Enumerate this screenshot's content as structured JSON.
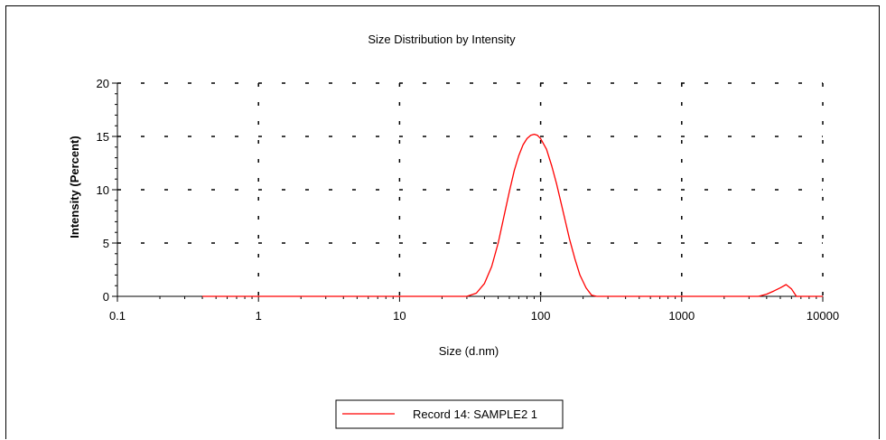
{
  "chart_data": {
    "type": "line",
    "title": "Size Distribution by Intensity",
    "xlabel": "Size (d.nm)",
    "ylabel": "Intensity (Percent)",
    "x_scale": "log",
    "xlim": [
      0.1,
      10000
    ],
    "ylim": [
      0,
      20
    ],
    "x_ticks": [
      0.1,
      1,
      10,
      100,
      1000,
      10000
    ],
    "x_tick_labels": [
      "0.1",
      "1",
      "10",
      "100",
      "1000",
      "10000"
    ],
    "y_ticks": [
      0,
      5,
      10,
      15,
      20
    ],
    "y_tick_labels": [
      "0",
      "5",
      "10",
      "15",
      "20"
    ],
    "grid": true,
    "legend_position": "bottom-center",
    "series": [
      {
        "name": "Record 14: SAMPLE2 1",
        "color": "#ff0000",
        "x": [
          0.4,
          10,
          30,
          35,
          40,
          45,
          50,
          55,
          60,
          65,
          70,
          75,
          80,
          85,
          90,
          95,
          100,
          110,
          120,
          130,
          140,
          150,
          160,
          175,
          190,
          210,
          230,
          250,
          1000,
          3500,
          4000,
          4500,
          5000,
          5500,
          6000,
          6500,
          10000
        ],
        "y": [
          0,
          0,
          0,
          0.3,
          1.2,
          2.8,
          5.0,
          7.5,
          9.8,
          11.8,
          13.2,
          14.2,
          14.8,
          15.1,
          15.2,
          15.1,
          14.8,
          13.8,
          12.2,
          10.5,
          8.7,
          7.0,
          5.4,
          3.5,
          2.0,
          0.8,
          0.1,
          0,
          0,
          0,
          0.2,
          0.5,
          0.8,
          1.1,
          0.7,
          0,
          0
        ]
      }
    ]
  }
}
